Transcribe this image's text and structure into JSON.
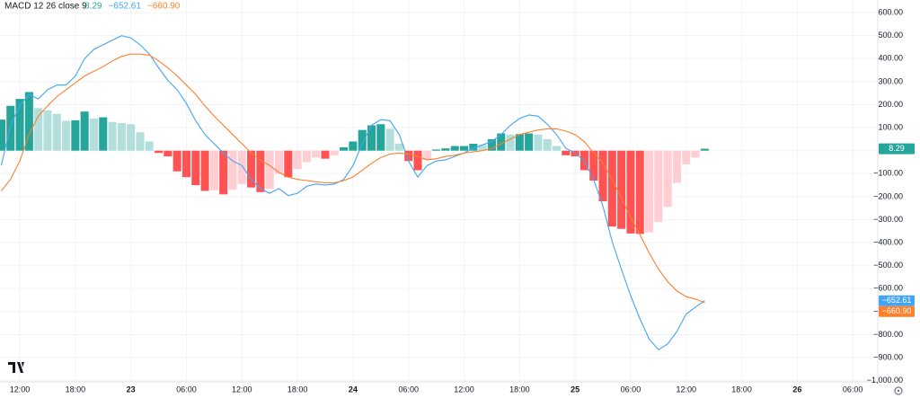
{
  "chart_data": {
    "type": "combo",
    "indicator": {
      "title": "MACD 12 26 close 9",
      "readouts": [
        "8.29",
        "−652.61",
        "−660.90"
      ]
    },
    "x": [
      -2,
      -1,
      0,
      1,
      2,
      3,
      4,
      5,
      6,
      7,
      8,
      9,
      10,
      11,
      12,
      13,
      14,
      15,
      16,
      17,
      18,
      19,
      20,
      21,
      22,
      23,
      24,
      25,
      26,
      27,
      28,
      29,
      30,
      31,
      32,
      33,
      34,
      35,
      36,
      37,
      38,
      39,
      40,
      41,
      42,
      43,
      44,
      45,
      46,
      47,
      48,
      49,
      50,
      51,
      52,
      53,
      54,
      55,
      56,
      57,
      58,
      59,
      60,
      61,
      62,
      63,
      64,
      65,
      66,
      67,
      68,
      69,
      70,
      71,
      72,
      73,
      74
    ],
    "series": [
      {
        "type": "bar",
        "colors": {
          "rising_positive": "#26a69a",
          "falling_positive": "#b2dfdb",
          "falling_negative": "#ff5252",
          "rising_negative": "#ffcdd2"
        },
        "values": [
          135,
          195,
          225,
          255,
          185,
          175,
          160,
          130,
          132,
          170,
          140,
          145,
          125,
          120,
          115,
          80,
          40,
          -10,
          -25,
          -90,
          -115,
          -150,
          -175,
          -172,
          -190,
          -170,
          -145,
          -160,
          -180,
          -165,
          -100,
          -115,
          -80,
          -50,
          -30,
          -35,
          -20,
          15,
          40,
          90,
          110,
          115,
          95,
          30,
          -45,
          -85,
          -40,
          5,
          10,
          20,
          20,
          30,
          25,
          50,
          75,
          70,
          72,
          75,
          70,
          50,
          20,
          -20,
          -25,
          -85,
          -130,
          -220,
          -330,
          -340,
          -360,
          -362,
          -355,
          -310,
          -245,
          -140,
          -60,
          -30,
          8.29
        ]
      },
      {
        "type": "line",
        "color": "#42a5f5",
        "values": [
          -65,
          110,
          195,
          245,
          225,
          265,
          285,
          285,
          325,
          400,
          440,
          460,
          480,
          500,
          490,
          460,
          420,
          360,
          305,
          265,
          205,
          130,
          70,
          30,
          -10,
          -45,
          -65,
          -125,
          -165,
          -185,
          -165,
          -195,
          -185,
          -155,
          -145,
          -150,
          -145,
          -125,
          -65,
          30,
          110,
          135,
          130,
          70,
          -45,
          -115,
          -65,
          -45,
          -40,
          -25,
          -10,
          10,
          25,
          40,
          70,
          110,
          140,
          155,
          150,
          115,
          70,
          10,
          -10,
          -45,
          -125,
          -240,
          -395,
          -515,
          -630,
          -730,
          -820,
          -865,
          -840,
          -785,
          -710,
          -680,
          -652.61
        ]
      },
      {
        "type": "line",
        "color": "#ff7f2a",
        "values": [
          -175,
          -125,
          -45,
          70,
          150,
          195,
          235,
          265,
          295,
          325,
          345,
          365,
          390,
          410,
          420,
          420,
          415,
          390,
          360,
          325,
          285,
          245,
          195,
          150,
          110,
          70,
          30,
          -10,
          -40,
          -65,
          -95,
          -115,
          -125,
          -130,
          -135,
          -140,
          -140,
          -130,
          -115,
          -85,
          -55,
          -30,
          -15,
          -10,
          -15,
          -25,
          -40,
          -35,
          -25,
          -20,
          -10,
          -5,
          0,
          10,
          30,
          50,
          70,
          80,
          90,
          95,
          95,
          85,
          70,
          40,
          -10,
          -55,
          -125,
          -205,
          -290,
          -365,
          -445,
          -515,
          -570,
          -610,
          -635,
          -645,
          -660.9
        ]
      }
    ],
    "xlim": [
      -2.14,
      92.7
    ],
    "xticks": [
      {
        "value": 0,
        "label": "12:00"
      },
      {
        "value": 6,
        "label": "18:00"
      },
      {
        "value": 12,
        "label": "23"
      },
      {
        "value": 18,
        "label": "06:00"
      },
      {
        "value": 24,
        "label": "12:00"
      },
      {
        "value": 30,
        "label": "18:00"
      },
      {
        "value": 36,
        "label": "24"
      },
      {
        "value": 42,
        "label": "06:00"
      },
      {
        "value": 48,
        "label": "12:00"
      },
      {
        "value": 54,
        "label": "18:00"
      },
      {
        "value": 60,
        "label": "25"
      },
      {
        "value": 66,
        "label": "06:00"
      },
      {
        "value": 72,
        "label": "12:00"
      },
      {
        "value": 78,
        "label": "18:00"
      },
      {
        "value": 84,
        "label": "26"
      },
      {
        "value": 90,
        "label": "06:00"
      }
    ],
    "ylim": [
      -1005,
      655
    ],
    "yticks": [
      {
        "value": 600,
        "label": "600.00"
      },
      {
        "value": 500,
        "label": "500.00"
      },
      {
        "value": 400,
        "label": "400.00"
      },
      {
        "value": 300,
        "label": "300.00"
      },
      {
        "value": 200,
        "label": "200.00"
      },
      {
        "value": 100,
        "label": "100.00"
      },
      {
        "value": 0,
        "label": "0.00"
      },
      {
        "value": -100,
        "label": "−100.00"
      },
      {
        "value": -200,
        "label": "−200.00"
      },
      {
        "value": -300,
        "label": "−300.00"
      },
      {
        "value": -400,
        "label": "−400.00"
      },
      {
        "value": -500,
        "label": "−500.00"
      },
      {
        "value": -600,
        "label": "−600.00"
      },
      {
        "value": -700,
        "label": "−700.00"
      },
      {
        "value": -800,
        "label": "−800.00"
      },
      {
        "value": -900,
        "label": "−900.00"
      },
      {
        "value": -1000,
        "label": "−1,000.00"
      }
    ],
    "grid": true
  }
}
